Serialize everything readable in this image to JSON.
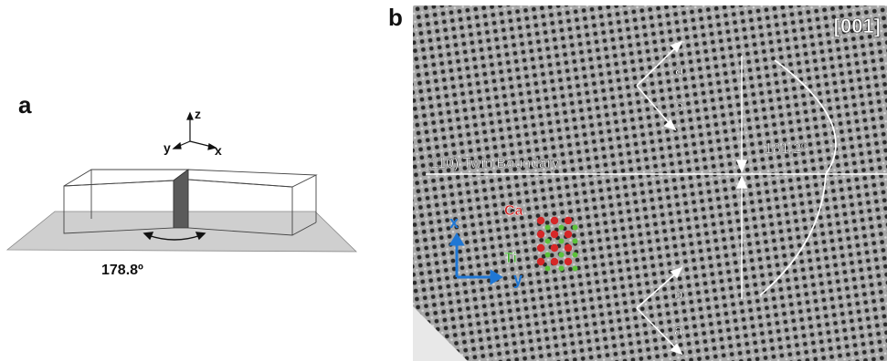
{
  "figure": {
    "panel_a": {
      "label": "a",
      "axes": {
        "x": "x",
        "y": "y",
        "z": "z"
      },
      "angle_label": "178.8º"
    },
    "panel_b": {
      "label": "b",
      "zone_axis": "[001]",
      "boundary_label": "(110) Twin Boundary",
      "angle_label": "181.2º",
      "upper_vectors": {
        "a": "a",
        "b": "b"
      },
      "lower_vectors": {
        "a": "a",
        "b": "b"
      },
      "lattice_axes": {
        "x": "x",
        "y": "y"
      },
      "atom_labels": {
        "ca": "Ca",
        "ti": "Ti"
      },
      "colors": {
        "ca": "#d62728",
        "ti": "#5cc13a",
        "axes": "#1f77d4",
        "ca_label": "#cc1f1f",
        "ti_label": "#3ea82b"
      }
    }
  }
}
